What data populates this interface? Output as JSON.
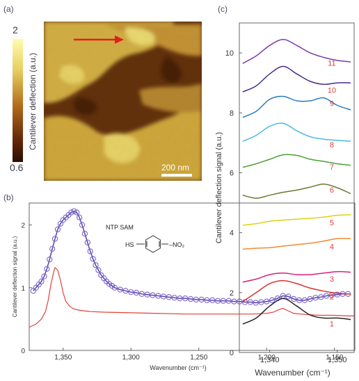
{
  "panels": {
    "a": {
      "label": "(a)",
      "colorbar": {
        "max_label": "2",
        "min_label": "0.6",
        "title": "Cantilever deflection (a.u.)"
      },
      "scalebar": "200 nm",
      "arrow_color": "#e0201a"
    },
    "b": {
      "label": "(b)"
    },
    "c": {
      "label": "(c)"
    }
  },
  "chart_data": [
    {
      "panel": "b",
      "type": "scatter",
      "xlabel": "Wavenumber (cm⁻¹)",
      "ylabel": "Cantilever deflection signal (a.u.)",
      "xlim": [
        1375,
        1135
      ],
      "ylim": [
        0,
        2.35
      ],
      "xticks": [
        "1,350",
        "1,300",
        "1,250",
        "1,200",
        "1,150"
      ],
      "xtick_values": [
        1350,
        1300,
        1250,
        1200,
        1150
      ],
      "yticks": [
        "0",
        "1",
        "2"
      ],
      "ytick_values": [
        0,
        1,
        2
      ],
      "annotation": "NTP SAM",
      "molecule": {
        "left_group": "HS",
        "right_group": "NO₂"
      },
      "series": [
        {
          "style": "markers+line",
          "color": "#5b3fa8",
          "points": [
            [
              1372,
              0.95
            ],
            [
              1370,
              1.0
            ],
            [
              1368,
              1.05
            ],
            [
              1366,
              1.1
            ],
            [
              1364,
              1.18
            ],
            [
              1362,
              1.3
            ],
            [
              1360,
              1.45
            ],
            [
              1358,
              1.62
            ],
            [
              1356,
              1.78
            ],
            [
              1354,
              1.93
            ],
            [
              1352,
              2.02
            ],
            [
              1350,
              2.08
            ],
            [
              1348,
              2.12
            ],
            [
              1346,
              2.16
            ],
            [
              1344,
              2.2
            ],
            [
              1342,
              2.22
            ],
            [
              1340,
              2.2
            ],
            [
              1338,
              2.12
            ],
            [
              1336,
              2.0
            ],
            [
              1334,
              1.86
            ],
            [
              1332,
              1.72
            ],
            [
              1330,
              1.58
            ],
            [
              1328,
              1.46
            ],
            [
              1326,
              1.36
            ],
            [
              1324,
              1.28
            ],
            [
              1322,
              1.2
            ],
            [
              1320,
              1.15
            ],
            [
              1318,
              1.1
            ],
            [
              1316,
              1.06
            ],
            [
              1314,
              1.03
            ],
            [
              1312,
              1.0
            ],
            [
              1308,
              0.97
            ],
            [
              1304,
              0.95
            ],
            [
              1300,
              0.93
            ],
            [
              1296,
              0.92
            ],
            [
              1292,
              0.9
            ],
            [
              1288,
              0.89
            ],
            [
              1284,
              0.88
            ],
            [
              1280,
              0.87
            ],
            [
              1276,
              0.86
            ],
            [
              1272,
              0.85
            ],
            [
              1268,
              0.84
            ],
            [
              1264,
              0.83
            ],
            [
              1260,
              0.83
            ],
            [
              1256,
              0.82
            ],
            [
              1252,
              0.81
            ],
            [
              1248,
              0.81
            ],
            [
              1244,
              0.8
            ],
            [
              1240,
              0.8
            ],
            [
              1236,
              0.79
            ],
            [
              1232,
              0.79
            ],
            [
              1228,
              0.79
            ],
            [
              1224,
              0.78
            ],
            [
              1220,
              0.78
            ],
            [
              1216,
              0.77
            ],
            [
              1212,
              0.77
            ],
            [
              1208,
              0.76
            ],
            [
              1204,
              0.77
            ],
            [
              1200,
              0.78
            ],
            [
              1196,
              0.8
            ],
            [
              1192,
              0.83
            ],
            [
              1188,
              0.87
            ],
            [
              1184,
              0.86
            ],
            [
              1180,
              0.82
            ],
            [
              1176,
              0.8
            ],
            [
              1172,
              0.8
            ],
            [
              1168,
              0.82
            ],
            [
              1164,
              0.84
            ],
            [
              1160,
              0.85
            ],
            [
              1156,
              0.87
            ],
            [
              1152,
              0.88
            ],
            [
              1148,
              0.89
            ],
            [
              1144,
              0.9
            ],
            [
              1140,
              0.9
            ]
          ]
        },
        {
          "style": "line",
          "color": "#e0403a",
          "points": [
            [
              1375,
              0.37
            ],
            [
              1370,
              0.42
            ],
            [
              1366,
              0.5
            ],
            [
              1363,
              0.62
            ],
            [
              1361,
              0.8
            ],
            [
              1359,
              1.05
            ],
            [
              1357,
              1.25
            ],
            [
              1356,
              1.32
            ],
            [
              1354,
              1.28
            ],
            [
              1352,
              1.12
            ],
            [
              1350,
              0.92
            ],
            [
              1348,
              0.78
            ],
            [
              1345,
              0.7
            ],
            [
              1342,
              0.66
            ],
            [
              1338,
              0.64
            ],
            [
              1330,
              0.62
            ],
            [
              1320,
              0.61
            ],
            [
              1300,
              0.6
            ],
            [
              1280,
              0.59
            ],
            [
              1260,
              0.58
            ],
            [
              1240,
              0.58
            ],
            [
              1220,
              0.58
            ],
            [
              1210,
              0.58
            ],
            [
              1200,
              0.59
            ],
            [
              1195,
              0.61
            ],
            [
              1191,
              0.65
            ],
            [
              1188,
              0.67
            ],
            [
              1185,
              0.64
            ],
            [
              1180,
              0.59
            ],
            [
              1170,
              0.57
            ],
            [
              1160,
              0.56
            ],
            [
              1150,
              0.56
            ],
            [
              1140,
              0.55
            ],
            [
              1135,
              0.55
            ]
          ]
        }
      ]
    },
    {
      "panel": "c",
      "type": "line",
      "xlabel": "Wavenumber (cm⁻¹)",
      "ylabel": "Cantilever deflection signal (a.u.)",
      "xlim": [
        1335.5,
        1352.5
      ],
      "ylim": [
        0,
        11
      ],
      "xticks": [
        "1,340",
        "1,350"
      ],
      "xtick_values": [
        1340,
        1350
      ],
      "yticks": [
        "0",
        "2",
        "4",
        "6",
        "8",
        "10"
      ],
      "ytick_values": [
        0,
        2,
        4,
        6,
        8,
        10
      ],
      "x": [
        1336,
        1338,
        1340,
        1342,
        1344,
        1346,
        1348,
        1350,
        1352
      ],
      "series": [
        {
          "label": "1",
          "color": "#2a2020",
          "values": [
            0.95,
            1.15,
            1.55,
            1.8,
            1.55,
            1.25,
            1.15,
            1.15,
            1.1
          ]
        },
        {
          "label": "2",
          "color": "#d8302a",
          "values": [
            1.7,
            2.0,
            2.3,
            2.4,
            2.3,
            2.15,
            2.05,
            1.98,
            1.95
          ]
        },
        {
          "label": "3",
          "color": "#d6207a",
          "values": [
            2.35,
            2.45,
            2.6,
            2.65,
            2.6,
            2.6,
            2.65,
            2.7,
            2.68
          ]
        },
        {
          "label": "4",
          "color": "#f08a30",
          "values": [
            3.45,
            3.48,
            3.5,
            3.55,
            3.6,
            3.65,
            3.72,
            3.8,
            3.8
          ]
        },
        {
          "label": "5",
          "color": "#e0d010",
          "values": [
            4.25,
            4.3,
            4.38,
            4.42,
            4.45,
            4.48,
            4.52,
            4.58,
            4.6
          ]
        },
        {
          "label": "6",
          "color": "#6a7a30",
          "values": [
            5.25,
            5.15,
            5.25,
            5.35,
            5.42,
            5.52,
            5.62,
            5.5,
            5.3
          ]
        },
        {
          "label": "7",
          "color": "#4aa030",
          "values": [
            6.18,
            6.3,
            6.45,
            6.6,
            6.58,
            6.45,
            6.38,
            6.3,
            6.25
          ]
        },
        {
          "label": "8",
          "color": "#4ab8e0",
          "values": [
            7.05,
            7.25,
            7.55,
            7.65,
            7.4,
            7.2,
            7.12,
            7.08,
            7.05
          ]
        },
        {
          "label": "9",
          "color": "#2a78c0",
          "values": [
            7.85,
            8.05,
            8.45,
            8.55,
            8.4,
            8.4,
            8.5,
            8.25,
            8.1
          ]
        },
        {
          "label": "10",
          "color": "#4a2a8a",
          "values": [
            8.7,
            8.9,
            9.3,
            9.55,
            9.3,
            9.05,
            8.95,
            9.0,
            9.0
          ]
        },
        {
          "label": "11",
          "color": "#7a3aa8",
          "values": [
            9.65,
            9.9,
            10.25,
            10.45,
            10.25,
            10.0,
            9.85,
            9.75,
            9.7
          ]
        }
      ],
      "label_color": "#e0403a"
    }
  ]
}
